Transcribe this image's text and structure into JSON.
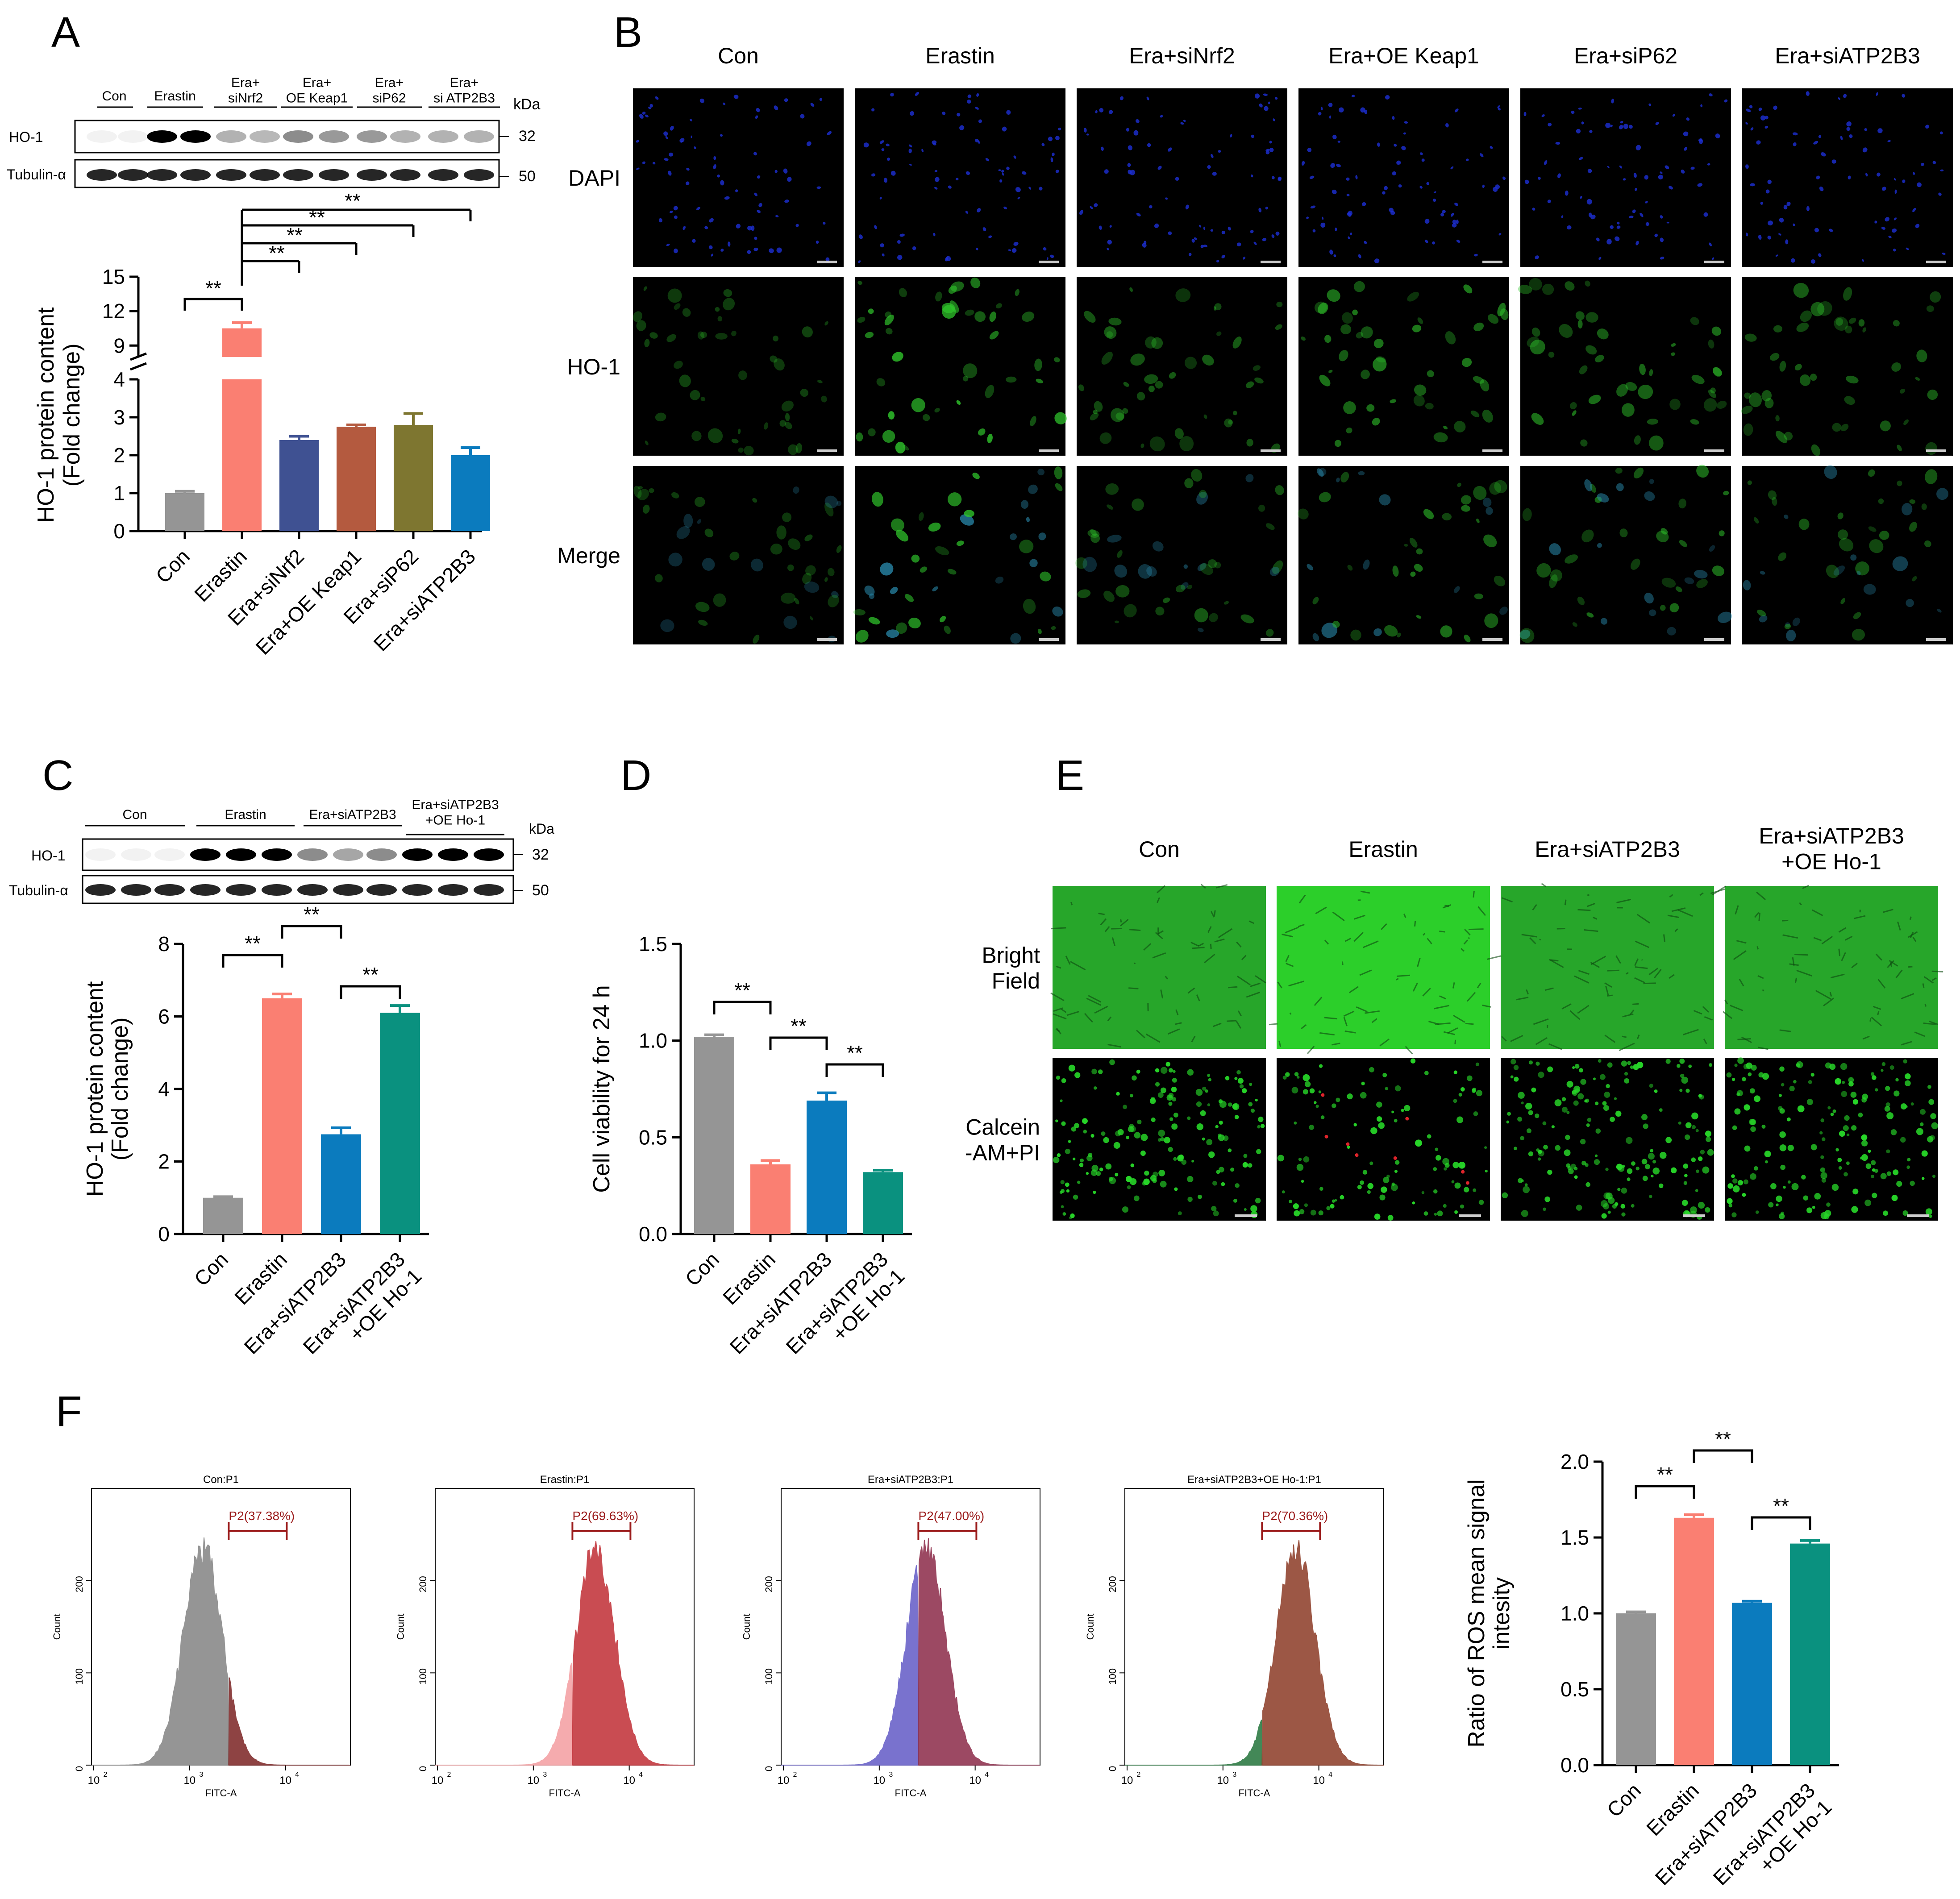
{
  "figure": {
    "panel_letters": [
      "A",
      "B",
      "C",
      "D",
      "E",
      "F"
    ],
    "colors": {
      "con": "#959595",
      "erastin": "#fa7f72",
      "nrf2": "#3f5192",
      "keap1": "#b45a3f",
      "p62": "#7e7630",
      "atp2b3": "#0b7bbe",
      "oeho1": "#0a917f",
      "sig": "#000000",
      "gate": "#9b1b1b"
    }
  },
  "panelA": {
    "blot": {
      "lanes": [
        "Con",
        "Erastin",
        "Era+\nsiNrf2",
        "Era+\nOE Keap1",
        "Era+\nsiP62",
        "Era+\nsi ATP2B3"
      ],
      "kda_label": "kDa",
      "rows": [
        {
          "protein": "HO-1",
          "kda": "32"
        },
        {
          "protein": "Tubulin-α",
          "kda": "50"
        }
      ]
    },
    "sig_label": "**"
  },
  "panelB": {
    "columns": [
      "Con",
      "Erastin",
      "Era+siNrf2",
      "Era+OE Keap1",
      "Era+siP62",
      "Era+siATP2B3"
    ],
    "rows": [
      "DAPI",
      "HO-1",
      "Merge"
    ]
  },
  "panelC": {
    "blot": {
      "lanes": [
        "Con",
        "Erastin",
        "Era+siATP2B3",
        "Era+siATP2B3\n+OE Ho-1"
      ],
      "kda_label": "kDa",
      "rows": [
        {
          "protein": "HO-1",
          "kda": "32"
        },
        {
          "protein": "Tubulin-α",
          "kda": "50"
        }
      ]
    }
  },
  "panelE": {
    "columns": [
      "Con",
      "Erastin",
      "Era+siATP2B3",
      "Era+siATP2B3\n+OE Ho-1"
    ],
    "rows": [
      "Bright\nField",
      "Calcein\n-AM+PI"
    ]
  },
  "panelF": {
    "histograms": [
      {
        "title": "Con:P1",
        "gate": "P2(37.38%)"
      },
      {
        "title": "Erastin:P1",
        "gate": "P2(69.63%)"
      },
      {
        "title": "Era+siATP2B3:P1",
        "gate": "P2(47.00%)"
      },
      {
        "title": "Era+siATP2B3+OE Ho-1:P1",
        "gate": "P2(70.36%)"
      }
    ],
    "hist_ylabel": "Count",
    "hist_xlabel": "FITC-A",
    "hist_yticks": [
      "0",
      "100",
      "200"
    ],
    "hist_xticks": [
      "10",
      "10",
      "10"
    ],
    "hist_xtick_exps": [
      "2",
      "3",
      "4"
    ]
  },
  "chart_data": [
    {
      "id": "A",
      "type": "bar",
      "categories": [
        "Con",
        "Erastin",
        "Era+siNrf2",
        "Era+OE Keap1",
        "Era+siP62",
        "Era+siATP2B3"
      ],
      "values": [
        1.0,
        10.5,
        2.4,
        2.75,
        2.8,
        2.0
      ],
      "errors": [
        0.05,
        0.5,
        0.1,
        0.05,
        0.3,
        0.2
      ],
      "ylabel": "HO-1 protein content\n(Fold change)",
      "ylim_lower": [
        0,
        4
      ],
      "ylim_upper": [
        8,
        15
      ],
      "yticks_lower": [
        "0",
        "1",
        "2",
        "3",
        "4"
      ],
      "yticks_upper": [
        "9",
        "12",
        "15"
      ],
      "axis_break": true,
      "significance": "**"
    },
    {
      "id": "C",
      "type": "bar",
      "categories": [
        "Con",
        "Erastin",
        "Era+siATP2B3",
        "Era+siATP2B3\n+OE Ho-1"
      ],
      "values": [
        1.0,
        6.5,
        2.75,
        6.1
      ],
      "errors": [
        0.03,
        0.12,
        0.18,
        0.2
      ],
      "ylabel": "HO-1 protein content\n(Fold change)",
      "ylim": [
        0,
        8
      ],
      "yticks": [
        "0",
        "2",
        "4",
        "6",
        "8"
      ],
      "significance": "**"
    },
    {
      "id": "D",
      "type": "bar",
      "categories": [
        "Con",
        "Erastin",
        "Era+siATP2B3",
        "Era+siATP2B3\n+OE Ho-1"
      ],
      "values": [
        1.02,
        0.36,
        0.69,
        0.32
      ],
      "errors": [
        0.01,
        0.02,
        0.04,
        0.01
      ],
      "ylabel": "Cell viability for 24 h",
      "ylim": [
        0,
        1.5
      ],
      "yticks": [
        "0.0",
        "0.5",
        "1.0",
        "1.5"
      ],
      "significance": "**"
    },
    {
      "id": "F",
      "type": "bar",
      "categories": [
        "Con",
        "Erastin",
        "Era+siATP2B3",
        "Era+siATP2B3\n+OE Ho-1"
      ],
      "values": [
        1.0,
        1.63,
        1.07,
        1.46
      ],
      "errors": [
        0.01,
        0.02,
        0.01,
        0.02
      ],
      "ylabel": "Ratio of ROS mean signal\nintesity",
      "ylim": [
        0,
        2.0
      ],
      "yticks": [
        "0.0",
        "0.5",
        "1.0",
        "1.5",
        "2.0"
      ],
      "significance": "**"
    }
  ]
}
